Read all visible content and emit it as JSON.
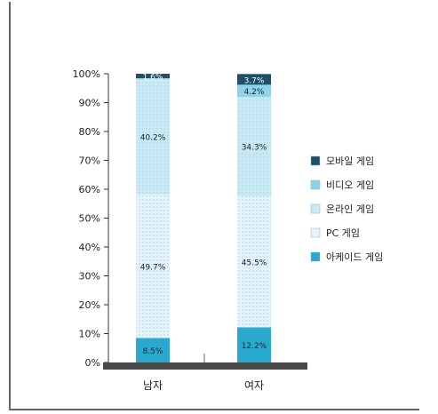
{
  "chart_data": {
    "type": "bar",
    "stacked": true,
    "categories": [
      "남자",
      "여자"
    ],
    "yticks": [
      "0%",
      "10%",
      "20%",
      "30%",
      "40%",
      "50%",
      "60%",
      "70%",
      "80%",
      "90%",
      "100%"
    ],
    "ylim": [
      0,
      100
    ],
    "grid": false,
    "legend_position": "right",
    "series": [
      {
        "name": "아케이드 게임",
        "values": [
          8.5,
          12.2
        ],
        "labels": [
          "8.5%",
          "12.2%"
        ],
        "color": "#2aa9cf"
      },
      {
        "name": "PC 게임",
        "values": [
          49.7,
          45.5
        ],
        "labels": [
          "49.7%",
          "45.5%"
        ],
        "color": "#e4f4fa"
      },
      {
        "name": "온라인 게임",
        "values": [
          40.2,
          34.3
        ],
        "labels": [
          "40.2%",
          "34.3%"
        ],
        "color": "#c9e9f4"
      },
      {
        "name": "비디오 게임",
        "values": [
          0,
          4.2
        ],
        "labels": [
          "",
          "4.2%"
        ],
        "color": "#8fd3ea"
      },
      {
        "name": "모바일 게임",
        "values": [
          1.6,
          3.7
        ],
        "labels": [
          "1.6%",
          "3.7%"
        ],
        "color": "#1d4f66"
      }
    ],
    "legend_order": [
      "모바일 게임",
      "비디오 게임",
      "온라인 게임",
      "PC 게임",
      "아케이드 게임"
    ]
  }
}
